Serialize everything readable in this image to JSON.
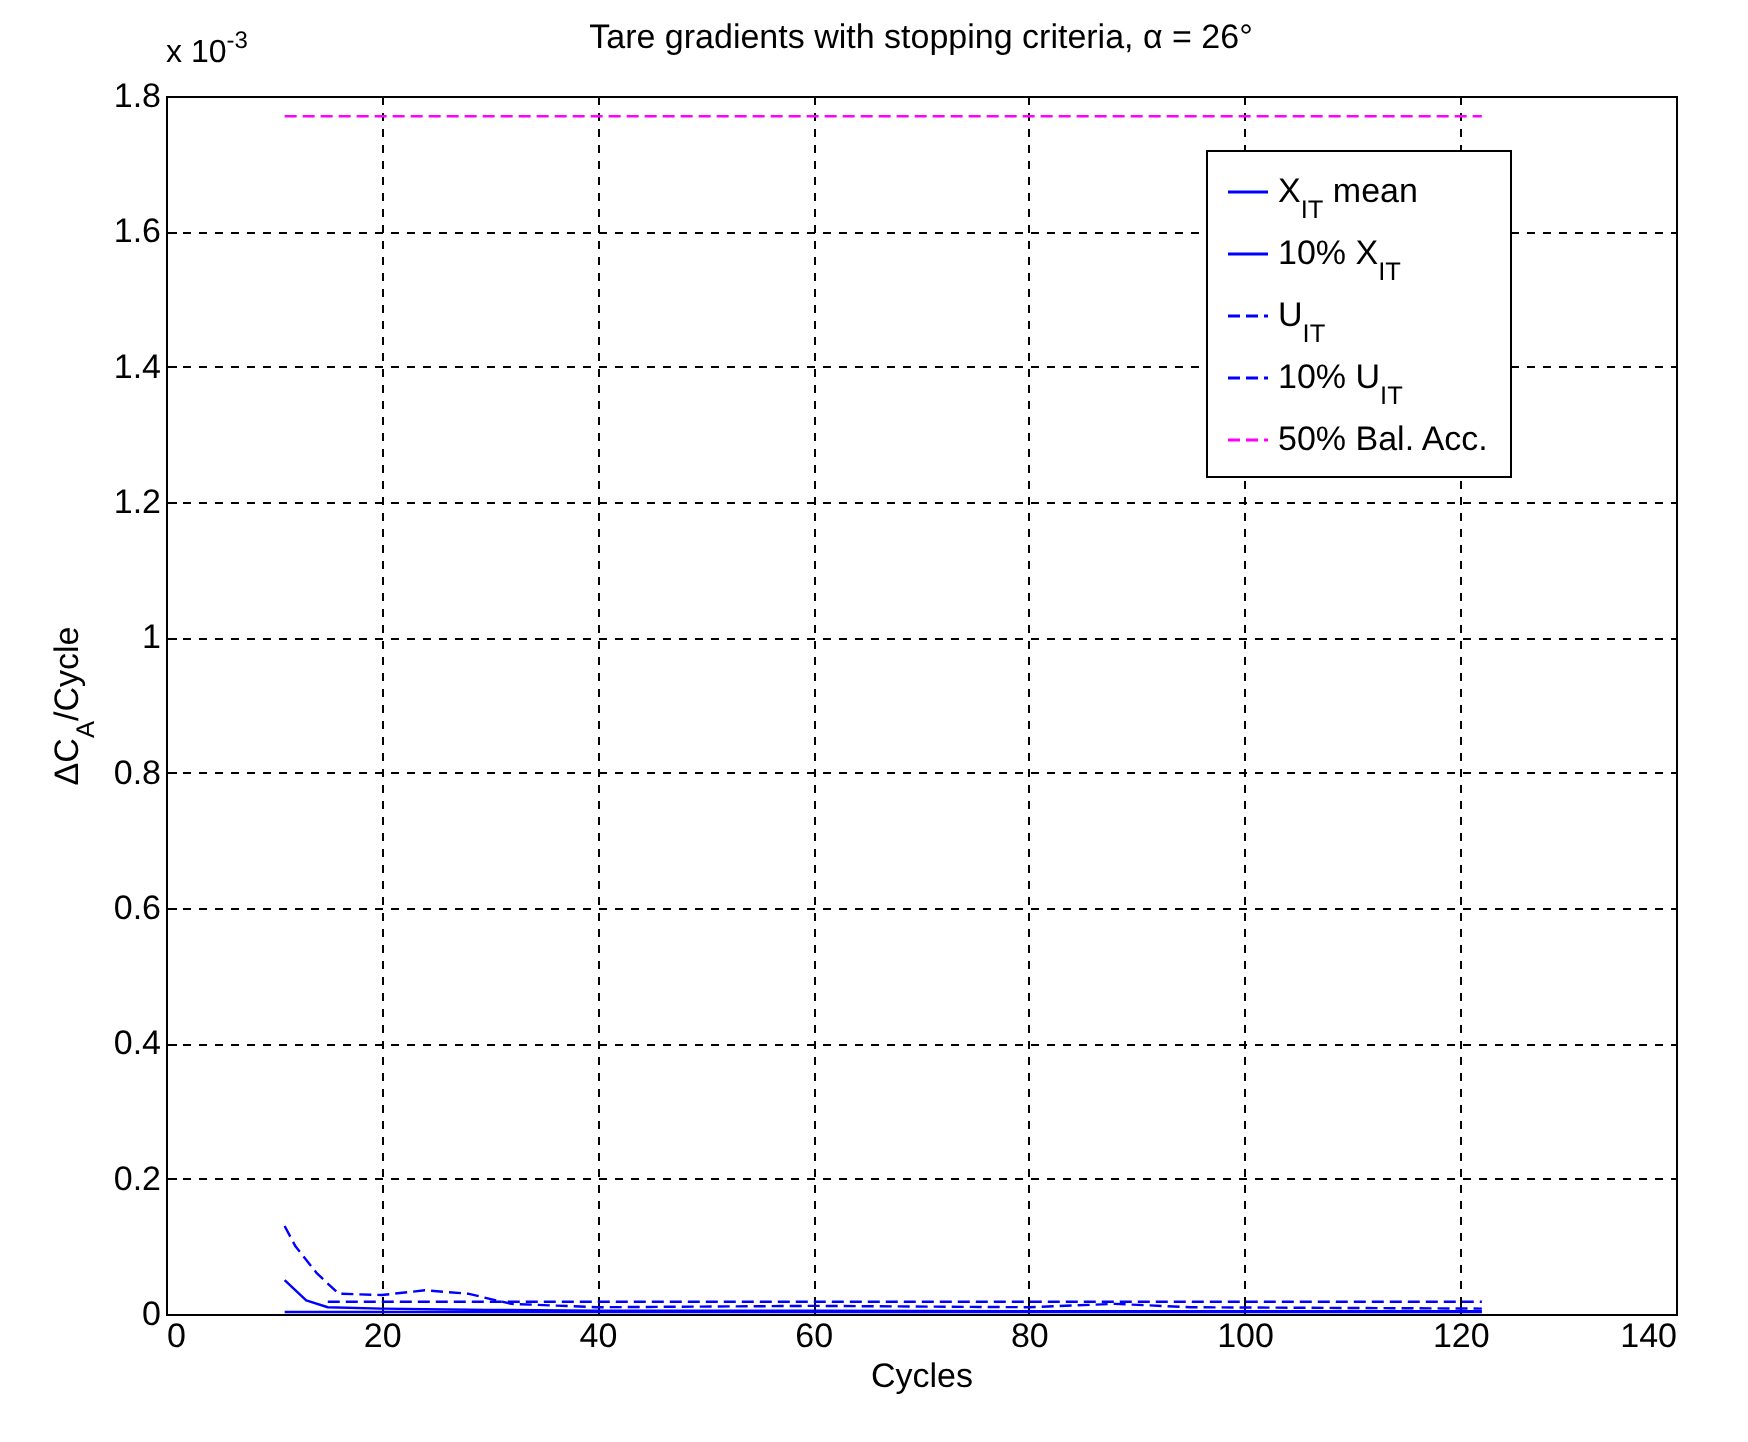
{
  "chart_data": {
    "type": "line",
    "title": "Tare gradients with stopping criteria, α = 26°",
    "xlabel": "Cycles",
    "ylabel": "ΔC$_{A}$/Cycle",
    "annotations": [
      "x 10$^{-3}$"
    ],
    "xlim": [
      0,
      140
    ],
    "xticks": [
      0,
      20,
      40,
      60,
      80,
      100,
      120,
      140
    ],
    "ylim": [
      0,
      1.8
    ],
    "yticks": [
      0,
      0.2,
      0.4,
      0.6,
      0.8,
      1,
      1.2,
      1.4,
      1.6,
      1.8
    ],
    "grid": true,
    "legend": "top right",
    "series": [
      {
        "name": "X$_{IT}$ mean",
        "color": "#0000ff",
        "line_style": "solid",
        "x": [
          11,
          13,
          15,
          20,
          30,
          40,
          60,
          80,
          100,
          122
        ],
        "values": [
          0.05,
          0.02,
          0.01,
          0.008,
          0.006,
          0.005,
          0.005,
          0.004,
          0.004,
          0.004
        ]
      },
      {
        "name": "10% X$_{IT}$",
        "color": "#0000ff",
        "line_style": "solid",
        "x": [
          11,
          122
        ],
        "values": [
          0.003,
          0.003
        ]
      },
      {
        "name": "U$_{IT}$",
        "color": "#0000ff",
        "line_style": "dashed",
        "x": [
          11,
          12,
          14,
          16,
          20,
          24,
          28,
          32,
          40,
          60,
          80,
          88,
          95,
          122
        ],
        "values": [
          0.13,
          0.1,
          0.06,
          0.03,
          0.028,
          0.035,
          0.03,
          0.015,
          0.01,
          0.012,
          0.01,
          0.015,
          0.01,
          0.008
        ]
      },
      {
        "name": "10% U$_{IT}$",
        "color": "#0000ff",
        "line_style": "dashed",
        "x": [
          15,
          122
        ],
        "values": [
          0.018,
          0.018
        ]
      },
      {
        "name": "50% Bal. Acc.",
        "color": "#ff00ff",
        "line_style": "dashed",
        "x": [
          11,
          122
        ],
        "values": [
          1.77,
          1.77
        ]
      }
    ]
  }
}
